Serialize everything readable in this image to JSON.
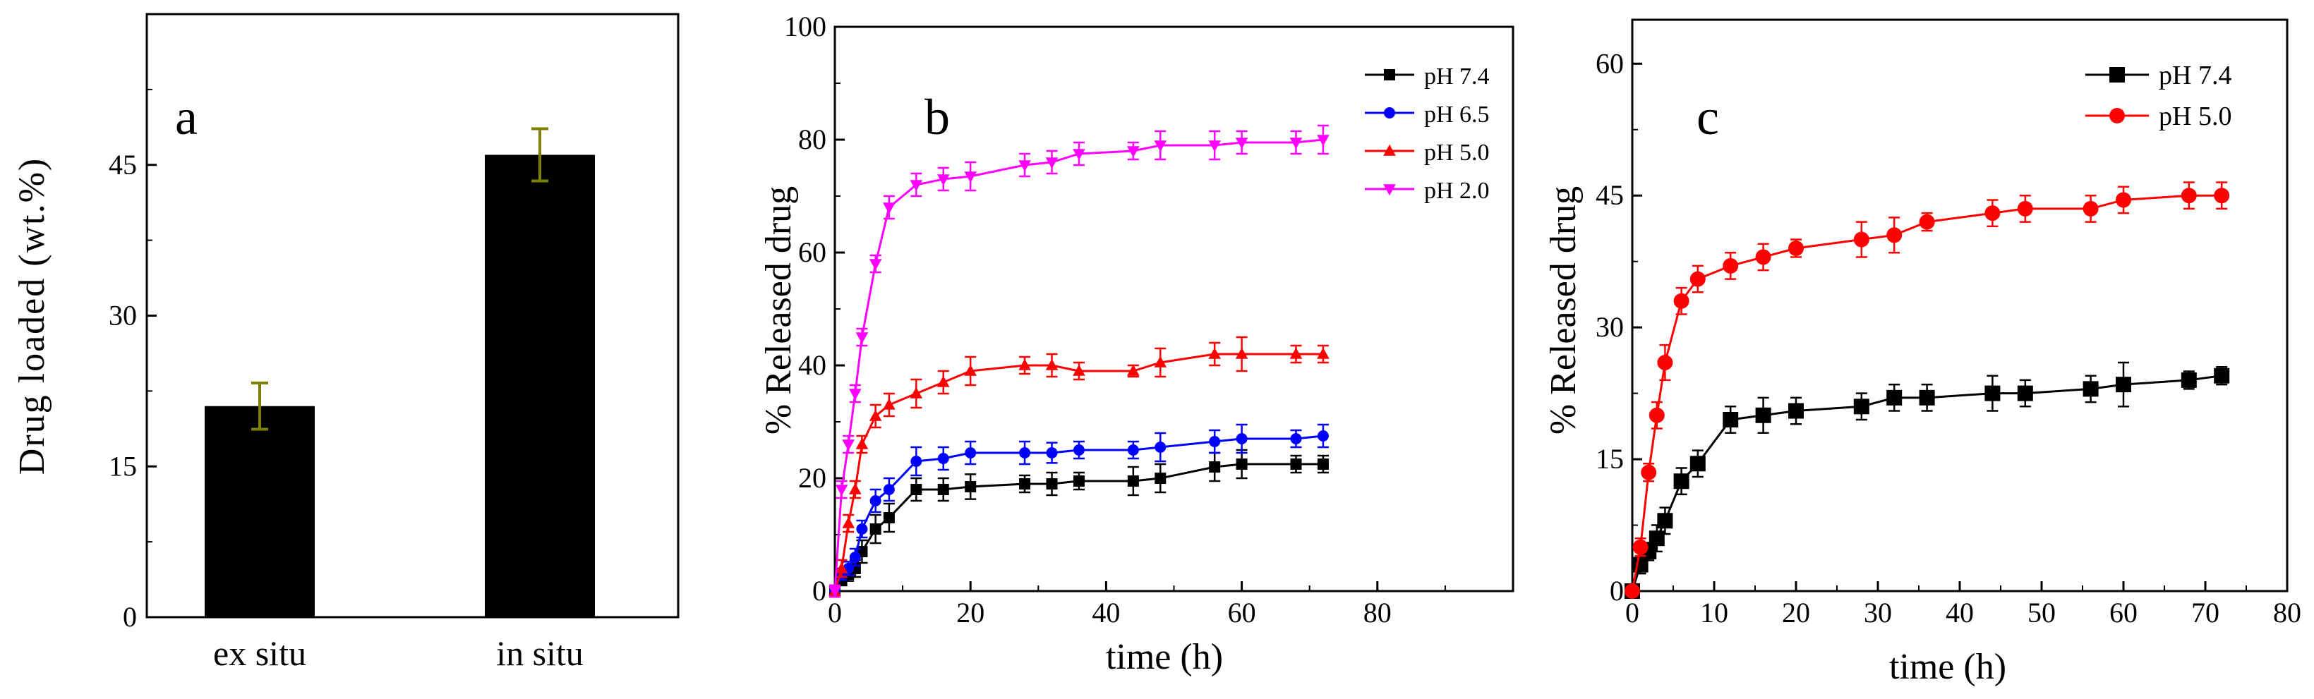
{
  "chart_data": [
    {
      "panel": "a",
      "type": "bar",
      "categories": [
        "ex situ",
        "in situ"
      ],
      "values": [
        21,
        46
      ],
      "errors": [
        2.3,
        2.6
      ],
      "xlabel": "",
      "ylabel": "Drug loaded (wt.%)",
      "ylim": [
        0,
        60
      ],
      "yticks": [
        0,
        15,
        30,
        45
      ],
      "bar_color": "#000000",
      "error_color": "#808000"
    },
    {
      "panel": "b",
      "type": "line",
      "xlabel": "time (h)",
      "ylabel": "% Released drug",
      "xlim": [
        0,
        100
      ],
      "ylim": [
        0,
        100
      ],
      "xticks": [
        0,
        20,
        40,
        60,
        80
      ],
      "yticks": [
        0,
        20,
        40,
        60,
        80,
        100
      ],
      "legend_position": "top-right",
      "series": [
        {
          "name": "pH 7.4",
          "color": "#000000",
          "marker": "square",
          "x": [
            0,
            1,
            2,
            3,
            4,
            6,
            8,
            12,
            16,
            20,
            28,
            32,
            36,
            44,
            48,
            56,
            60,
            68,
            72
          ],
          "y": [
            0,
            2,
            3,
            4,
            7,
            11,
            13,
            18,
            18,
            18.5,
            19,
            19,
            19.5,
            19.5,
            20,
            22,
            22.5,
            22.5,
            22.5
          ],
          "err": [
            1,
            1,
            1.2,
            1.5,
            2,
            2.5,
            2.5,
            2,
            2,
            2.2,
            1.5,
            2,
            1.5,
            2.5,
            2.5,
            2.5,
            2.5,
            1.5,
            1.5
          ]
        },
        {
          "name": "pH 6.5",
          "color": "#0000ff",
          "marker": "circle",
          "x": [
            0,
            1,
            2,
            3,
            4,
            6,
            8,
            12,
            16,
            20,
            28,
            32,
            36,
            44,
            48,
            56,
            60,
            68,
            72
          ],
          "y": [
            0,
            3,
            4,
            6,
            11,
            16,
            18,
            23,
            23.5,
            24.5,
            24.5,
            24.5,
            25,
            25,
            25.5,
            26.5,
            27,
            27,
            27.5
          ],
          "err": [
            1,
            1,
            1.2,
            1.5,
            1.5,
            2,
            2,
            2.5,
            2,
            2,
            2,
            1.8,
            1.5,
            1.5,
            2.5,
            2,
            2.5,
            1.5,
            2
          ]
        },
        {
          "name": "pH 5.0",
          "color": "#ff0000",
          "marker": "triangle-up",
          "x": [
            0,
            1,
            2,
            3,
            4,
            6,
            8,
            12,
            16,
            20,
            28,
            32,
            36,
            44,
            48,
            56,
            60,
            68,
            72
          ],
          "y": [
            0,
            4,
            12,
            18,
            26,
            31,
            33,
            35,
            37,
            39,
            40,
            40,
            39,
            39,
            40.5,
            42,
            42,
            42,
            42
          ],
          "err": [
            1,
            1.5,
            1.5,
            1.5,
            1.5,
            2,
            2,
            2.5,
            2,
            2.5,
            1.5,
            2,
            1.5,
            1,
            2.5,
            2,
            3,
            1.5,
            1.5
          ]
        },
        {
          "name": "pH 2.0",
          "color": "#ff00ff",
          "marker": "triangle-down",
          "x": [
            0,
            1,
            2,
            3,
            4,
            6,
            8,
            12,
            16,
            20,
            28,
            32,
            36,
            44,
            48,
            56,
            60,
            68,
            72
          ],
          "y": [
            0,
            18,
            26,
            35,
            45,
            58,
            68,
            72,
            73,
            73.5,
            75.5,
            76,
            77.5,
            78,
            79,
            79,
            79.5,
            79.5,
            80
          ],
          "err": [
            1,
            1.5,
            1.5,
            1.5,
            1.5,
            1.5,
            2,
            2,
            2,
            2.5,
            2,
            2,
            2,
            1.5,
            2.5,
            2.5,
            2,
            2,
            2.5
          ]
        }
      ]
    },
    {
      "panel": "c",
      "type": "line",
      "xlabel": "time (h)",
      "ylabel": "% Released drug",
      "xlim": [
        0,
        80
      ],
      "ylim": [
        0,
        65
      ],
      "xticks": [
        0,
        10,
        20,
        30,
        40,
        50,
        60,
        70,
        80
      ],
      "yticks": [
        0,
        15,
        30,
        45,
        60
      ],
      "legend_position": "top-right",
      "series": [
        {
          "name": "pH 7.4",
          "color": "#000000",
          "marker": "square",
          "x": [
            0,
            1,
            2,
            3,
            4,
            6,
            8,
            12,
            16,
            20,
            28,
            32,
            36,
            44,
            48,
            56,
            60,
            68,
            72
          ],
          "y": [
            0,
            3,
            4.5,
            6,
            8,
            12.5,
            14.5,
            19.5,
            20,
            20.5,
            21,
            22,
            22,
            22.5,
            22.5,
            23,
            23.5,
            24,
            24.5
          ],
          "err": [
            0.5,
            1,
            1,
            1.5,
            1.5,
            1.5,
            1.5,
            1.5,
            2,
            1.5,
            1.5,
            1.5,
            1.5,
            2,
            1.5,
            1.5,
            2.5,
            1,
            1
          ]
        },
        {
          "name": "pH 5.0",
          "color": "#ff0000",
          "marker": "circle",
          "x": [
            0,
            1,
            2,
            3,
            4,
            6,
            8,
            12,
            16,
            20,
            28,
            32,
            36,
            44,
            48,
            56,
            60,
            68,
            72
          ],
          "y": [
            0,
            5,
            13.5,
            20,
            26,
            33,
            35.5,
            37,
            38,
            39,
            40,
            40.5,
            42,
            43,
            43.5,
            43.5,
            44.5,
            45,
            45
          ],
          "err": [
            0.5,
            1,
            1,
            1.5,
            2,
            1.5,
            1.5,
            1.5,
            1.5,
            1,
            2,
            2,
            1,
            1.5,
            1.5,
            1.5,
            1.5,
            1.5,
            1.5
          ]
        }
      ]
    }
  ]
}
